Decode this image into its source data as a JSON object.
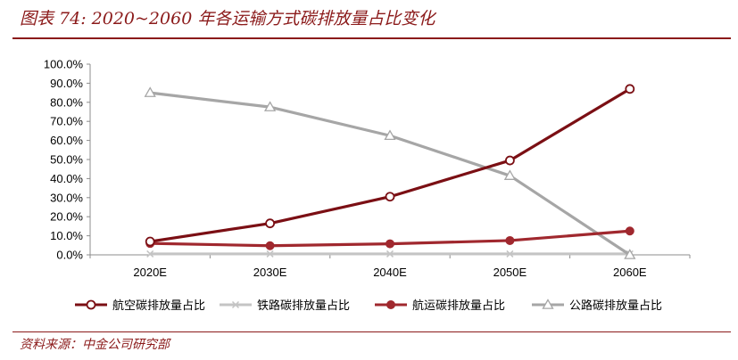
{
  "figure": {
    "title": "图表 74: 2020~2060 年各运输方式碳排放量占比变化",
    "source": "资料来源：中金公司研究部"
  },
  "chart_data": {
    "type": "line",
    "categories": [
      "2020E",
      "2030E",
      "2040E",
      "2050E",
      "2060E"
    ],
    "y_ticks": [
      "0.0%",
      "10.0%",
      "20.0%",
      "30.0%",
      "40.0%",
      "50.0%",
      "60.0%",
      "70.0%",
      "80.0%",
      "90.0%",
      "100.0%"
    ],
    "ylim": [
      0,
      100
    ],
    "grid": false,
    "legend_position": "bottom",
    "series": [
      {
        "name": "航空碳排放量占比",
        "values": [
          7,
          16.5,
          30.5,
          49.5,
          87
        ],
        "color": "#7b0f14",
        "marker": "circle-open"
      },
      {
        "name": "铁路碳排放量占比",
        "values": [
          0.5,
          0.5,
          0.5,
          0.5,
          0.5
        ],
        "color": "#c4c4c4",
        "marker": "x"
      },
      {
        "name": "航运碳排放量占比",
        "values": [
          6,
          4.8,
          5.8,
          7.5,
          12.5
        ],
        "color": "#a0282e",
        "marker": "circle-filled"
      },
      {
        "name": "公路碳排放量占比",
        "values": [
          85,
          77.5,
          62.5,
          41.5,
          0
        ],
        "color": "#a6a6a6",
        "marker": "triangle-open"
      }
    ]
  }
}
